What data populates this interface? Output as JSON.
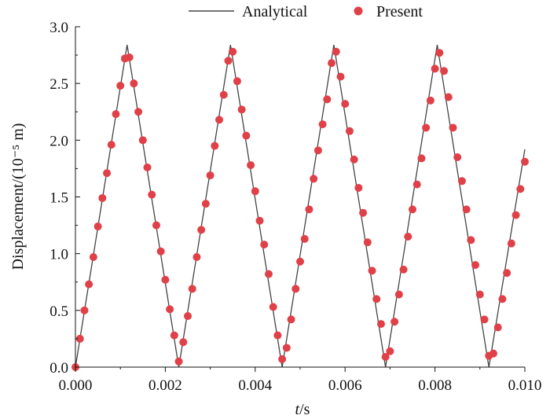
{
  "chart_data": {
    "type": "line",
    "xlabel_italic": "t",
    "xlabel_unit": "/s",
    "ylabel": "Displacement/(10⁻⁵ m)",
    "xlim": [
      0,
      0.01
    ],
    "ylim": [
      0,
      3.0
    ],
    "xticks": [
      0,
      0.002,
      0.004,
      0.006,
      0.008,
      0.01
    ],
    "xtick_labels": [
      "0.000",
      "0.002",
      "0.004",
      "0.006",
      "0.008",
      "0.010"
    ],
    "yticks": [
      0,
      0.5,
      1.0,
      1.5,
      2.0,
      2.5,
      3.0
    ],
    "ytick_labels": [
      "0.0",
      "0.5",
      "1.0",
      "1.5",
      "2.0",
      "2.5",
      "3.0"
    ],
    "legend_position": "top",
    "grid": false,
    "series": [
      {
        "name": "Analytical",
        "style": "line",
        "color": "#444444",
        "x": [
          0,
          0.00115,
          0.0023,
          0.00345,
          0.0046,
          0.00575,
          0.0069,
          0.00805,
          0.0092,
          0.01
        ],
        "y": [
          0,
          2.84,
          0,
          2.84,
          0,
          2.84,
          0,
          2.84,
          0,
          1.92
        ]
      },
      {
        "name": "Present",
        "style": "markers",
        "color": "#e04048",
        "x": [
          0,
          0.0001,
          0.0002,
          0.0003,
          0.0004,
          0.0005,
          0.0006,
          0.0007,
          0.0008,
          0.0009,
          0.001,
          0.0011,
          0.0012,
          0.0013,
          0.0014,
          0.0015,
          0.0016,
          0.0017,
          0.0018,
          0.0019,
          0.002,
          0.0021,
          0.0022,
          0.0023,
          0.0024,
          0.0025,
          0.0026,
          0.0027,
          0.0028,
          0.0029,
          0.003,
          0.0031,
          0.0032,
          0.0033,
          0.0034,
          0.0035,
          0.0036,
          0.0037,
          0.0038,
          0.0039,
          0.004,
          0.0041,
          0.0042,
          0.0043,
          0.0044,
          0.0045,
          0.0046,
          0.0047,
          0.0048,
          0.0049,
          0.005,
          0.0051,
          0.0052,
          0.0053,
          0.0054,
          0.0055,
          0.0056,
          0.0057,
          0.0058,
          0.0059,
          0.006,
          0.0061,
          0.0062,
          0.0063,
          0.0064,
          0.0065,
          0.0066,
          0.0067,
          0.0068,
          0.0069,
          0.007,
          0.0071,
          0.0072,
          0.0073,
          0.0074,
          0.0075,
          0.0076,
          0.0077,
          0.0078,
          0.0079,
          0.008,
          0.0081,
          0.0082,
          0.0083,
          0.0084,
          0.0085,
          0.0086,
          0.0087,
          0.0088,
          0.0089,
          0.009,
          0.0091,
          0.0092,
          0.0093,
          0.0094,
          0.0095,
          0.0096,
          0.0097,
          0.0098,
          0.0099,
          0.01
        ],
        "y": [
          0.0,
          0.25,
          0.5,
          0.73,
          0.97,
          1.24,
          1.49,
          1.71,
          1.96,
          2.23,
          2.48,
          2.72,
          2.73,
          2.5,
          2.25,
          2.0,
          1.76,
          1.52,
          1.25,
          1.02,
          0.77,
          0.51,
          0.28,
          0.05,
          0.22,
          0.45,
          0.69,
          0.97,
          1.21,
          1.44,
          1.69,
          1.95,
          2.18,
          2.4,
          2.7,
          2.78,
          2.52,
          2.27,
          2.04,
          1.78,
          1.55,
          1.29,
          1.08,
          0.82,
          0.53,
          0.28,
          0.07,
          0.17,
          0.42,
          0.69,
          0.93,
          1.13,
          1.39,
          1.66,
          1.91,
          2.14,
          2.36,
          2.68,
          2.78,
          2.56,
          2.32,
          2.08,
          1.83,
          1.58,
          1.36,
          1.1,
          0.85,
          0.6,
          0.38,
          0.09,
          0.14,
          0.4,
          0.64,
          0.86,
          1.15,
          1.39,
          1.61,
          1.84,
          2.11,
          2.35,
          2.63,
          2.77,
          2.61,
          2.38,
          2.11,
          1.85,
          1.64,
          1.39,
          1.12,
          0.9,
          0.64,
          0.42,
          0.1,
          0.12,
          0.35,
          0.6,
          0.83,
          1.09,
          1.34,
          1.57,
          1.81
        ]
      }
    ]
  }
}
